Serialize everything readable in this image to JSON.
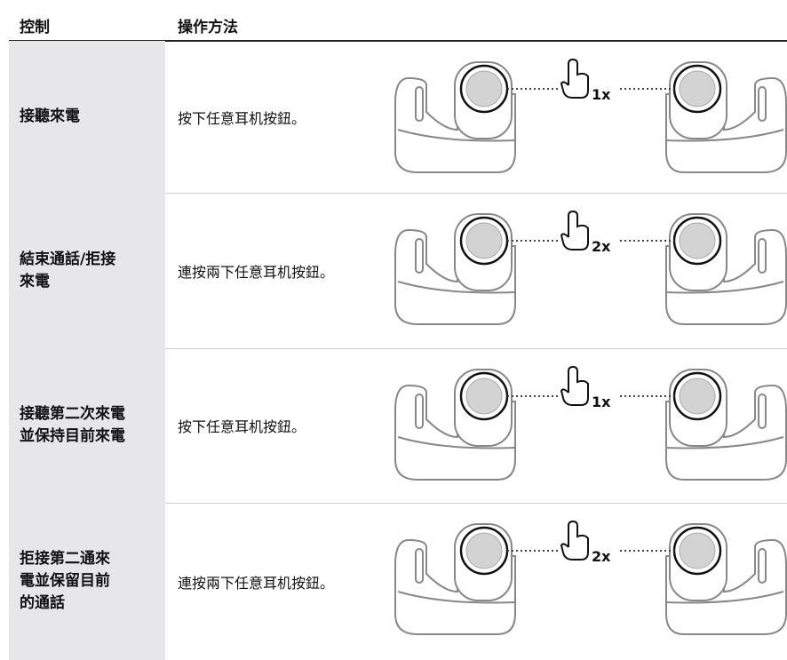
{
  "header": {
    "columns": [
      "控制",
      "操作方法"
    ]
  },
  "table": {
    "rows": [
      {
        "control": [
          "接聽來電"
        ],
        "method": "按下任意耳机按鈕。",
        "presses": "1x"
      },
      {
        "control": [
          "結束通話/拒接",
          "來電"
        ],
        "method": "連按兩下任意耳机按鈕。",
        "presses": "2x"
      },
      {
        "control": [
          "接聽第二次來電",
          "並保持目前來電"
        ],
        "method": "按下任意耳机按鈕。",
        "presses": "1x"
      },
      {
        "control": [
          "拒接第二通來",
          "電並保留目前",
          "的通話"
        ],
        "method": "連按兩下任意耳机按鈕。",
        "presses": "2x"
      }
    ]
  }
}
